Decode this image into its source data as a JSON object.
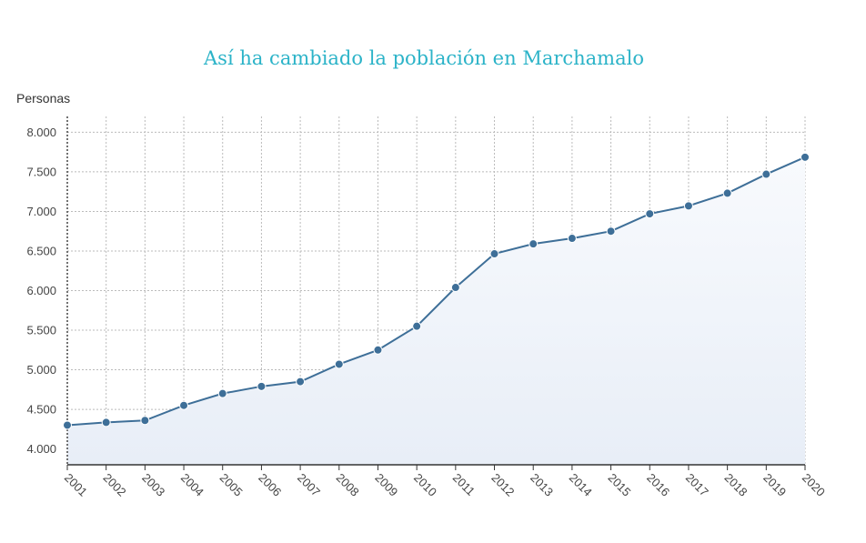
{
  "chart_data": {
    "type": "line",
    "title": "Así ha cambiado la población en Marchamalo",
    "ylabel": "Personas",
    "xlabel": "",
    "x": [
      "2001",
      "2002",
      "2003",
      "2004",
      "2005",
      "2006",
      "2007",
      "2008",
      "2009",
      "2010",
      "2011",
      "2012",
      "2013",
      "2014",
      "2015",
      "2016",
      "2017",
      "2018",
      "2019",
      "2020"
    ],
    "series": [
      {
        "values": [
          4300,
          4335,
          4360,
          4550,
          4700,
          4790,
          4850,
          5070,
          5250,
          5550,
          6040,
          6465,
          6590,
          6660,
          6750,
          6970,
          7070,
          7230,
          7470,
          7685
        ]
      }
    ],
    "ylim": [
      3800,
      8200
    ],
    "yticks": [
      4000,
      4500,
      5000,
      5500,
      6000,
      6500,
      7000,
      7500,
      8000
    ],
    "ytick_labels": [
      "4.000",
      "4.500",
      "5.000",
      "5.500",
      "6.000",
      "6.500",
      "7.000",
      "7.500",
      "8.000"
    ],
    "grid": true,
    "legend": "none",
    "colors": {
      "line": "#3e6f98",
      "marker": "#3e6f98",
      "area_top": "#f8fafd",
      "area_bottom": "#e8eef7",
      "grid": "#bbbbbb",
      "title": "#2bb3c8"
    }
  }
}
